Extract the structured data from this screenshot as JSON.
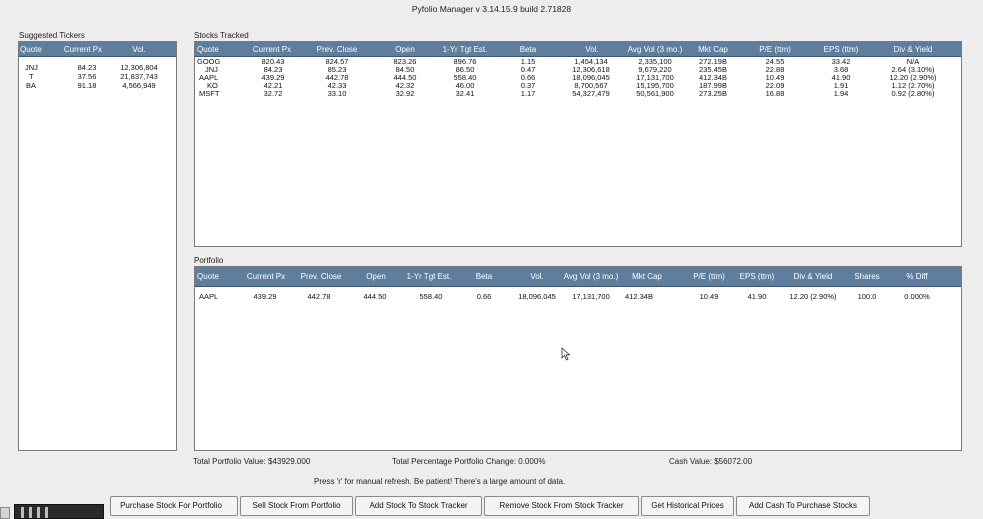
{
  "window": {
    "title": "Pyfolio Manager v 3.14.15.9 build 2.71828"
  },
  "suggested": {
    "label": "Suggested Tickers",
    "columns": [
      "Quote",
      "Current Px",
      "Vol."
    ],
    "rows": [
      [
        "JNJ",
        "84.23",
        "12,306,804"
      ],
      [
        "T",
        "37.56",
        "21,837,743"
      ],
      [
        "BA",
        "91.18",
        "4,566,949"
      ]
    ]
  },
  "tracked": {
    "label": "Stocks Tracked",
    "columns": [
      "Quote",
      "Current Px",
      "Prev. Close",
      "Open",
      "1-Yr Tgt Est.",
      "Beta",
      "Vol.",
      "Avg Vol (3 mo.)",
      "Mkt Cap",
      "P/E (ttm)",
      "EPS (ttm)",
      "Div & Yield"
    ],
    "rows": [
      [
        "GOOG",
        "820.43",
        "824.57",
        "823.26",
        "896.76",
        "1.15",
        "1,454,134",
        "2,335,100",
        "272.19B",
        "24.55",
        "33.42",
        "N/A"
      ],
      [
        "JNJ",
        "84.23",
        "85.23",
        "84.50",
        "86.50",
        "0.47",
        "12,306,618",
        "9,679,220",
        "235.45B",
        "22.88",
        "3.68",
        "2.64 (3.10%)"
      ],
      [
        "AAPL",
        "439.29",
        "442.78",
        "444.50",
        "558.40",
        "0.66",
        "18,096,045",
        "17,131,700",
        "412.34B",
        "10.49",
        "41.90",
        "12.20 (2.90%)"
      ],
      [
        "KO",
        "42.21",
        "42.33",
        "42.32",
        "46.00",
        "0.37",
        "8,700,567",
        "15,195,700",
        "187.99B",
        "22.09",
        "1.91",
        "1.12 (2.70%)"
      ],
      [
        "MSFT",
        "32.72",
        "33.10",
        "32.92",
        "32.41",
        "1.17",
        "54,327,479",
        "50,561,900",
        "273.25B",
        "16.88",
        "1.94",
        "0.92 (2.80%)"
      ]
    ]
  },
  "portfolio": {
    "label": "Portfolio",
    "columns": [
      "Quote",
      "Current Px",
      "Prev. Close",
      "Open",
      "1-Yr Tgt Est.",
      "Beta",
      "Vol.",
      "Avg Vol (3 mo.)",
      "Mkt Cap",
      "P/E (ttm)",
      "EPS (ttm)",
      "Div & Yield",
      "Shares",
      "% Diff"
    ],
    "rows": [
      [
        "AAPL",
        "439.29",
        "442.78",
        "444.50",
        "558.40",
        "0.66",
        "18,096,045",
        "17,131,700",
        "412.34B",
        "10.49",
        "41.90",
        "12.20 (2.90%)",
        "100.0",
        "0.000%"
      ]
    ]
  },
  "summary": {
    "total_value": "Total Portfolio Value: $43929.000",
    "total_change": "Total Percentage Portfolio Change: 0.000%",
    "cash_value": "Cash Value: $56072.00"
  },
  "hint": "Press 'r' for manual refresh. Be patient! There's a large amount of data.",
  "buttons": {
    "purchase": "Purchase Stock For Portfolio",
    "sell": "Sell Stock From Portfolio",
    "add_tracker": "Add Stock To Stock Tracker",
    "remove_tracker": "Remove Stock From Stock Tracker",
    "historical": "Get Historical Prices",
    "add_cash": "Add Cash To Purchase Stocks"
  },
  "icons": {
    "cursor": "mouse-pointer-icon"
  }
}
